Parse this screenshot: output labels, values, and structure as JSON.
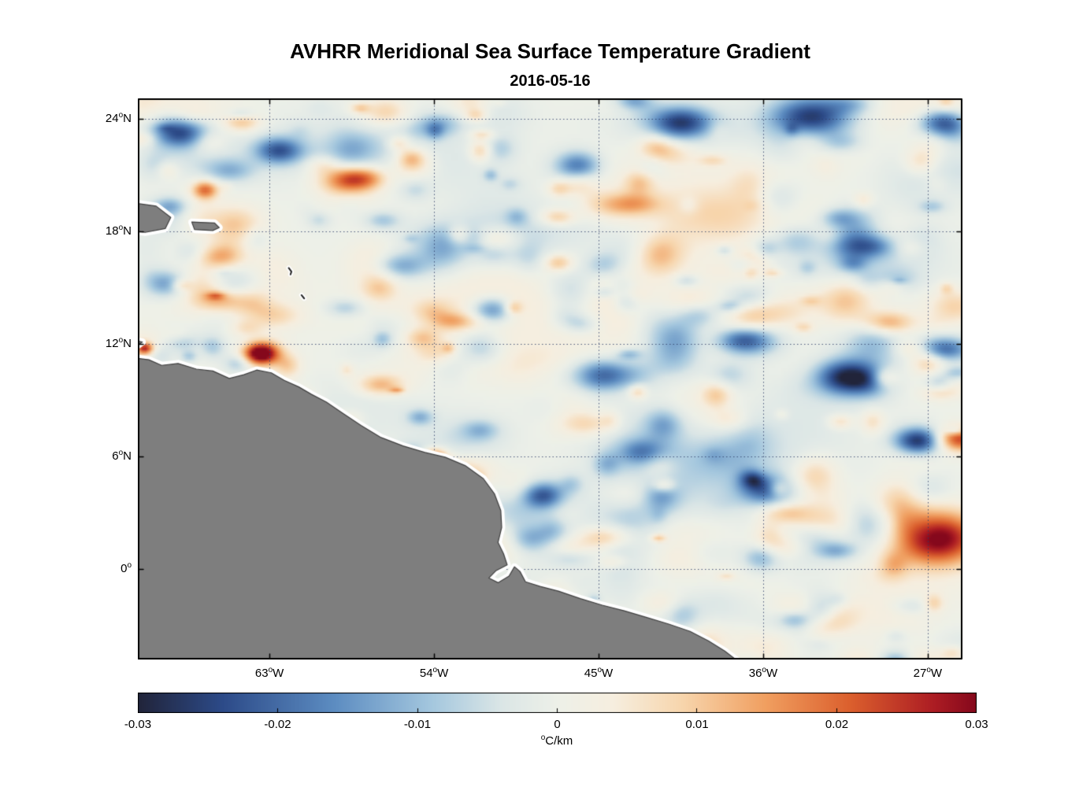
{
  "figure": {
    "title": "AVHRR Meridional Sea Surface Temperature Gradient",
    "subtitle": "2016-05-16"
  },
  "chart_data": {
    "type": "heatmap",
    "title": "AVHRR Meridional Sea Surface Temperature Gradient",
    "subtitle": "2016-05-16",
    "x_axis": {
      "range_lon": [
        -70.2,
        -25.1
      ],
      "ticks": [
        {
          "lon": -63,
          "deg": "63",
          "sup": "o",
          "dir": "W"
        },
        {
          "lon": -54,
          "deg": "54",
          "sup": "o",
          "dir": "W"
        },
        {
          "lon": -45,
          "deg": "45",
          "sup": "o",
          "dir": "W"
        },
        {
          "lon": -36,
          "deg": "36",
          "sup": "o",
          "dir": "W"
        },
        {
          "lon": -27,
          "deg": "27",
          "sup": "o",
          "dir": "W"
        }
      ]
    },
    "y_axis": {
      "range_lat": [
        -4.85,
        25.1
      ],
      "ticks": [
        {
          "lat": 24,
          "deg": "24",
          "sup": "o",
          "dir": "N"
        },
        {
          "lat": 18,
          "deg": "18",
          "sup": "o",
          "dir": "N"
        },
        {
          "lat": 12,
          "deg": "12",
          "sup": "o",
          "dir": "N"
        },
        {
          "lat": 6,
          "deg": "6",
          "sup": "o",
          "dir": "N"
        },
        {
          "lat": 0,
          "deg": "0",
          "sup": "o",
          "dir": ""
        }
      ]
    },
    "colorbar": {
      "range": [
        -0.03,
        0.03
      ],
      "tick_values": [
        -0.03,
        -0.02,
        -0.01,
        0,
        0.01,
        0.02,
        0.03
      ],
      "tick_labels": [
        "-0.03",
        "-0.02",
        "-0.01",
        "0",
        "0.01",
        "0.02",
        "0.03"
      ],
      "unit_sup": "o",
      "unit": "C/km"
    },
    "colormap": [
      {
        "v": -0.03,
        "c": [
          33,
          36,
          58
        ]
      },
      {
        "v": -0.024,
        "c": [
          44,
          74,
          136
        ]
      },
      {
        "v": -0.016,
        "c": [
          92,
          140,
          193
        ]
      },
      {
        "v": -0.009,
        "c": [
          164,
          199,
          222
        ]
      },
      {
        "v": -0.004,
        "c": [
          219,
          230,
          230
        ]
      },
      {
        "v": 0.0,
        "c": [
          237,
          240,
          232
        ]
      },
      {
        "v": 0.004,
        "c": [
          246,
          238,
          223
        ]
      },
      {
        "v": 0.009,
        "c": [
          247,
          213,
          172
        ]
      },
      {
        "v": 0.015,
        "c": [
          240,
          158,
          95
        ]
      },
      {
        "v": 0.021,
        "c": [
          219,
          95,
          45
        ]
      },
      {
        "v": 0.027,
        "c": [
          172,
          28,
          35
        ]
      },
      {
        "v": 0.03,
        "c": [
          133,
          8,
          28
        ]
      }
    ],
    "style": {
      "background": "#ffffff",
      "frame_color": "#000000",
      "grid_color": "#2f3e68",
      "land_color": "#7e7e7e",
      "land_edge": "#3f3f3f",
      "coast_halo": "#ffffff",
      "island_edge": "#222222"
    },
    "texture": {
      "seed": 20160516,
      "large_blobs": 70,
      "small_blobs": 430,
      "large_amp": 0.005,
      "small_amp": 0.011
    },
    "features": [
      {
        "lon": -63.6,
        "lat": 11.55,
        "value": 0.034,
        "slon": 0.65,
        "slat": 0.4
      },
      {
        "lon": -26.6,
        "lat": 1.7,
        "value": 0.032,
        "slon": 1.7,
        "slat": 1.0
      },
      {
        "lon": -25.4,
        "lat": 7.0,
        "value": 0.024,
        "slon": 0.9,
        "slat": 0.45
      },
      {
        "lon": -66.6,
        "lat": 20.3,
        "value": 0.02,
        "slon": 0.5,
        "slat": 0.35
      },
      {
        "lon": -54.1,
        "lat": 6.1,
        "value": 0.022,
        "slon": 0.5,
        "slat": 0.28
      },
      {
        "lon": -69.9,
        "lat": 11.85,
        "value": 0.022,
        "slon": 0.3,
        "slat": 0.2
      },
      {
        "lon": -29.3,
        "lat": 13.2,
        "value": 0.016,
        "slon": 1.0,
        "slat": 0.45
      },
      {
        "lon": -58.8,
        "lat": 20.8,
        "value": 0.012,
        "slon": 1.2,
        "slat": 0.5
      },
      {
        "lon": -44.0,
        "lat": 19.5,
        "value": 0.01,
        "slon": 1.4,
        "slat": 0.5
      },
      {
        "lon": -33.0,
        "lat": 2.5,
        "value": 0.014,
        "slon": 1.2,
        "slat": 0.6
      },
      {
        "lon": -57.0,
        "lat": 9.9,
        "value": 0.013,
        "slon": 0.9,
        "slat": 0.4
      },
      {
        "lon": -64.6,
        "lat": 24.0,
        "value": 0.012,
        "slon": 0.7,
        "slat": 0.4
      },
      {
        "lon": -33.5,
        "lat": -2.0,
        "value": 0.012,
        "slon": 1.5,
        "slat": 0.6
      },
      {
        "lon": -67.9,
        "lat": 23.4,
        "value": -0.026,
        "slon": 1.1,
        "slat": 0.6
      },
      {
        "lon": -62.6,
        "lat": 22.4,
        "value": -0.02,
        "slon": 0.9,
        "slat": 0.5
      },
      {
        "lon": -46.2,
        "lat": 21.6,
        "value": -0.022,
        "slon": 0.9,
        "slat": 0.55
      },
      {
        "lon": -40.6,
        "lat": 23.9,
        "value": -0.024,
        "slon": 1.2,
        "slat": 0.6
      },
      {
        "lon": -33.4,
        "lat": 24.2,
        "value": -0.028,
        "slon": 1.6,
        "slat": 0.8
      },
      {
        "lon": -26.3,
        "lat": 23.9,
        "value": -0.022,
        "slon": 0.9,
        "slat": 0.5
      },
      {
        "lon": -50.9,
        "lat": 13.9,
        "value": -0.018,
        "slon": 0.8,
        "slat": 0.5
      },
      {
        "lon": -44.6,
        "lat": 10.4,
        "value": -0.022,
        "slon": 1.3,
        "slat": 0.6
      },
      {
        "lon": -37.4,
        "lat": 12.3,
        "value": -0.018,
        "slon": 0.9,
        "slat": 0.5
      },
      {
        "lon": -31.6,
        "lat": 10.3,
        "value": -0.028,
        "slon": 1.1,
        "slat": 0.65
      },
      {
        "lon": -27.6,
        "lat": 6.9,
        "value": -0.028,
        "slon": 0.9,
        "slat": 0.5
      },
      {
        "lon": -48.2,
        "lat": 4.0,
        "value": -0.022,
        "slon": 0.85,
        "slat": 0.5
      },
      {
        "lon": -26.2,
        "lat": 11.8,
        "value": -0.02,
        "slon": 1.0,
        "slat": 0.45
      },
      {
        "lon": -30.5,
        "lat": 17.3,
        "value": -0.016,
        "slon": 1.1,
        "slat": 0.5
      },
      {
        "lon": -56.0,
        "lat": 16.2,
        "value": -0.014,
        "slon": 1.0,
        "slat": 0.5
      },
      {
        "lon": -42.5,
        "lat": 6.3,
        "value": -0.016,
        "slon": 1.0,
        "slat": 0.5
      },
      {
        "lon": -36.0,
        "lat": 4.3,
        "value": -0.018,
        "slon": 1.0,
        "slat": 0.55
      },
      {
        "lon": -68.8,
        "lat": 15.3,
        "value": -0.014,
        "slon": 0.8,
        "slat": 0.5
      }
    ],
    "land_polygons": [
      [
        [
          -72,
          -7
        ],
        [
          -72,
          11.45
        ],
        [
          -69.6,
          11.15
        ],
        [
          -68.9,
          10.85
        ],
        [
          -68.0,
          10.95
        ],
        [
          -67.0,
          10.65
        ],
        [
          -66.1,
          10.55
        ],
        [
          -65.2,
          10.15
        ],
        [
          -64.4,
          10.35
        ],
        [
          -63.7,
          10.6
        ],
        [
          -62.9,
          10.45
        ],
        [
          -62.2,
          10.05
        ],
        [
          -61.4,
          9.7
        ],
        [
          -60.7,
          9.3
        ],
        [
          -59.9,
          8.9
        ],
        [
          -59.0,
          8.3
        ],
        [
          -58.0,
          7.65
        ],
        [
          -56.9,
          7.0
        ],
        [
          -55.7,
          6.55
        ],
        [
          -54.5,
          6.2
        ],
        [
          -53.4,
          5.95
        ],
        [
          -52.3,
          5.5
        ],
        [
          -51.3,
          4.8
        ],
        [
          -50.7,
          4.0
        ],
        [
          -50.35,
          3.1
        ],
        [
          -50.3,
          2.2
        ],
        [
          -50.5,
          1.4
        ],
        [
          -50.2,
          0.8
        ],
        [
          -50.0,
          0.2
        ],
        [
          -50.6,
          -0.1
        ],
        [
          -51.0,
          -0.5
        ],
        [
          -50.5,
          -0.75
        ],
        [
          -49.9,
          -0.4
        ],
        [
          -49.6,
          0.1
        ],
        [
          -49.3,
          -0.15
        ],
        [
          -49.0,
          -0.7
        ],
        [
          -48.2,
          -0.95
        ],
        [
          -47.2,
          -1.2
        ],
        [
          -46.0,
          -1.6
        ],
        [
          -44.8,
          -1.95
        ],
        [
          -43.6,
          -2.25
        ],
        [
          -42.4,
          -2.6
        ],
        [
          -41.2,
          -2.95
        ],
        [
          -40.0,
          -3.35
        ],
        [
          -39.0,
          -3.85
        ],
        [
          -38.1,
          -4.4
        ],
        [
          -37.3,
          -5.0
        ],
        [
          -36.8,
          -6.0
        ]
      ],
      [
        [
          -71,
          19.6
        ],
        [
          -69.2,
          19.35
        ],
        [
          -68.4,
          18.75
        ],
        [
          -68.7,
          18.15
        ],
        [
          -69.8,
          17.95
        ],
        [
          -71,
          18.1
        ]
      ],
      [
        [
          -67.25,
          18.5
        ],
        [
          -66.0,
          18.45
        ],
        [
          -65.75,
          18.2
        ],
        [
          -66.1,
          18.05
        ],
        [
          -67.1,
          18.1
        ]
      ],
      [
        [
          -71,
          12.3
        ],
        [
          -69.95,
          12.1
        ],
        [
          -70.3,
          11.85
        ],
        [
          -71,
          11.9
        ]
      ]
    ],
    "island_lines": [
      [
        [
          -61.95,
          16.05
        ],
        [
          -61.8,
          15.85
        ],
        [
          -61.85,
          15.7
        ]
      ],
      [
        [
          -61.25,
          14.6
        ],
        [
          -61.1,
          14.42
        ]
      ]
    ]
  }
}
